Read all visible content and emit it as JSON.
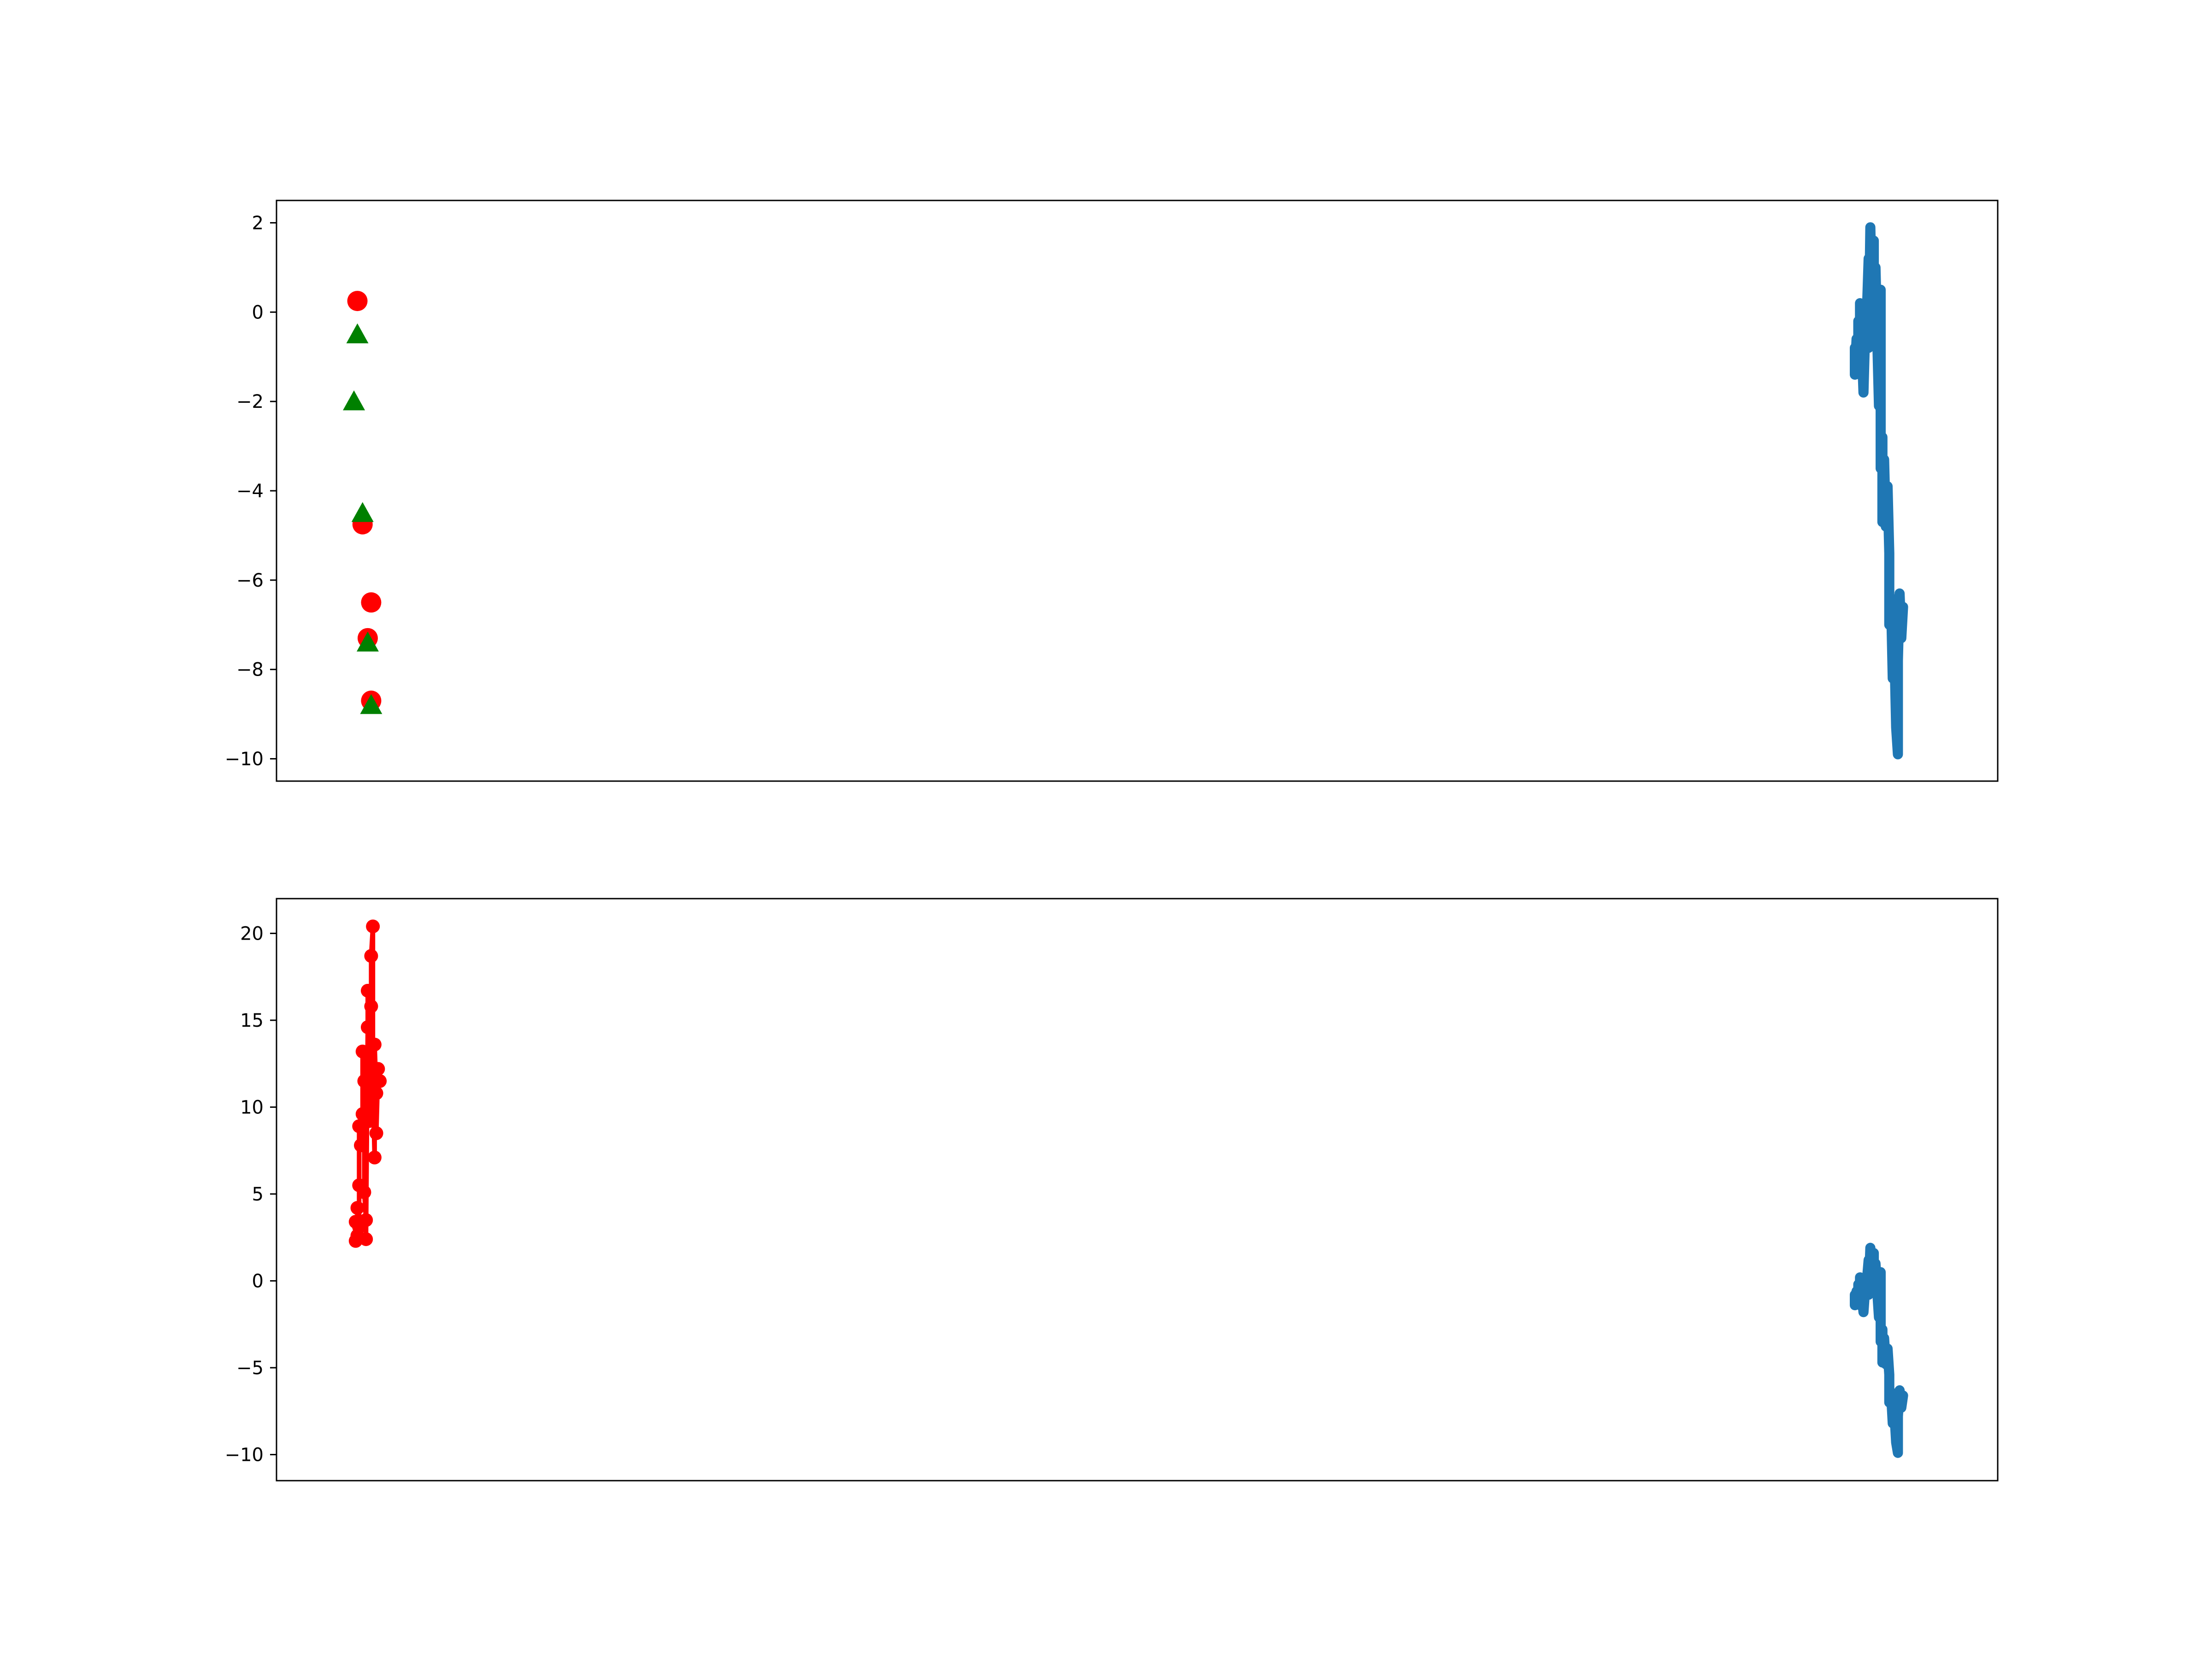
{
  "colors": {
    "blue_series": "#1f77b4",
    "red_series": "#ff0000",
    "green_markers": "#008000"
  },
  "chart_data": [
    {
      "type": "scatter",
      "title": "",
      "xlabel": "",
      "ylabel": "",
      "x_ticks_visible": false,
      "xlim": [
        0,
        100
      ],
      "ylim": [
        -10.5,
        2.5
      ],
      "yticks": [
        2,
        0,
        -2,
        -4,
        -6,
        -8,
        -10
      ],
      "ytick_labels": [
        "2",
        "0",
        "−2",
        "−4",
        "−6",
        "−8",
        "−10"
      ],
      "grid": false,
      "legend": false,
      "series": [
        {
          "kind": "line",
          "color": "#1f77b4",
          "points": [
            [
              91.7,
              -0.8
            ],
            [
              91.7,
              -1.4
            ],
            [
              91.8,
              -0.6
            ],
            [
              91.9,
              -1.1
            ],
            [
              91.9,
              -0.2
            ],
            [
              92.0,
              -1.4
            ],
            [
              92.0,
              0.2
            ],
            [
              92.1,
              -0.7
            ],
            [
              92.2,
              -1.8
            ],
            [
              92.3,
              -0.4
            ],
            [
              92.4,
              0.0
            ],
            [
              92.5,
              1.2
            ],
            [
              92.5,
              -0.8
            ],
            [
              92.6,
              1.9
            ],
            [
              92.7,
              0.1
            ],
            [
              92.8,
              1.6
            ],
            [
              92.8,
              -0.3
            ],
            [
              92.9,
              1.0
            ],
            [
              93.0,
              -0.6
            ],
            [
              93.1,
              -2.1
            ],
            [
              93.2,
              0.5
            ],
            [
              93.2,
              -3.5
            ],
            [
              93.3,
              -2.8
            ],
            [
              93.3,
              -4.7
            ],
            [
              93.4,
              -3.3
            ],
            [
              93.5,
              -4.8
            ],
            [
              93.6,
              -3.9
            ],
            [
              93.7,
              -5.4
            ],
            [
              93.7,
              -7.0
            ],
            [
              93.8,
              -6.4
            ],
            [
              93.9,
              -8.2
            ],
            [
              94.0,
              -7.6
            ],
            [
              94.1,
              -9.3
            ],
            [
              94.2,
              -9.9
            ],
            [
              94.2,
              -7.8
            ],
            [
              94.3,
              -6.3
            ],
            [
              94.4,
              -7.3
            ],
            [
              94.5,
              -6.6
            ]
          ]
        },
        {
          "kind": "markers",
          "marker": "circle",
          "color": "#ff0000",
          "points": [
            [
              4.7,
              0.25
            ],
            [
              5.0,
              -4.75
            ],
            [
              5.5,
              -6.5
            ],
            [
              5.3,
              -7.3
            ],
            [
              5.5,
              -8.7
            ]
          ]
        },
        {
          "kind": "markers",
          "marker": "triangle",
          "color": "#008000",
          "points": [
            [
              4.7,
              -0.5
            ],
            [
              4.5,
              -2.0
            ],
            [
              5.0,
              -4.5
            ],
            [
              5.3,
              -7.4
            ],
            [
              5.5,
              -8.8
            ]
          ]
        }
      ]
    },
    {
      "type": "line",
      "title": "",
      "xlabel": "",
      "ylabel": "",
      "x_ticks_visible": false,
      "xlim": [
        0,
        100
      ],
      "ylim": [
        -11.5,
        22
      ],
      "yticks": [
        20,
        15,
        10,
        5,
        0,
        -5,
        -10
      ],
      "ytick_labels": [
        "20",
        "15",
        "10",
        "5",
        "0",
        "−5",
        "−10"
      ],
      "grid": false,
      "legend": false,
      "series": [
        {
          "kind": "line_markers",
          "color": "#ff0000",
          "points": [
            [
              4.6,
              2.3
            ],
            [
              4.6,
              3.4
            ],
            [
              4.7,
              2.6
            ],
            [
              4.7,
              4.2
            ],
            [
              4.8,
              3.1
            ],
            [
              4.8,
              5.5
            ],
            [
              4.8,
              8.9
            ],
            [
              4.9,
              7.8
            ],
            [
              5.0,
              9.6
            ],
            [
              5.0,
              13.2
            ],
            [
              5.1,
              11.5
            ],
            [
              5.1,
              5.1
            ],
            [
              5.2,
              3.5
            ],
            [
              5.2,
              2.4
            ],
            [
              5.3,
              14.6
            ],
            [
              5.3,
              16.7
            ],
            [
              5.4,
              12.9
            ],
            [
              5.4,
              9.2
            ],
            [
              5.5,
              15.8
            ],
            [
              5.5,
              18.7
            ],
            [
              5.6,
              20.4
            ],
            [
              5.6,
              11.3
            ],
            [
              5.7,
              7.1
            ],
            [
              5.7,
              13.6
            ],
            [
              5.8,
              10.8
            ],
            [
              5.8,
              8.5
            ],
            [
              5.9,
              12.2
            ],
            [
              6.0,
              11.5
            ]
          ]
        },
        {
          "kind": "line",
          "color": "#1f77b4",
          "points": [
            [
              91.7,
              -0.8
            ],
            [
              91.7,
              -1.4
            ],
            [
              91.8,
              -0.6
            ],
            [
              91.9,
              -1.1
            ],
            [
              91.9,
              -0.2
            ],
            [
              92.0,
              -1.4
            ],
            [
              92.0,
              0.2
            ],
            [
              92.1,
              -0.7
            ],
            [
              92.2,
              -1.8
            ],
            [
              92.3,
              -0.4
            ],
            [
              92.4,
              0.0
            ],
            [
              92.5,
              1.2
            ],
            [
              92.5,
              -0.8
            ],
            [
              92.6,
              1.9
            ],
            [
              92.7,
              0.1
            ],
            [
              92.8,
              1.6
            ],
            [
              92.8,
              -0.3
            ],
            [
              92.9,
              1.0
            ],
            [
              93.0,
              -0.6
            ],
            [
              93.1,
              -2.1
            ],
            [
              93.2,
              0.5
            ],
            [
              93.2,
              -3.5
            ],
            [
              93.3,
              -2.8
            ],
            [
              93.3,
              -4.7
            ],
            [
              93.4,
              -3.3
            ],
            [
              93.5,
              -4.8
            ],
            [
              93.6,
              -3.9
            ],
            [
              93.7,
              -5.4
            ],
            [
              93.7,
              -7.0
            ],
            [
              93.8,
              -6.4
            ],
            [
              93.9,
              -8.2
            ],
            [
              94.0,
              -7.6
            ],
            [
              94.1,
              -9.3
            ],
            [
              94.2,
              -9.9
            ],
            [
              94.2,
              -7.8
            ],
            [
              94.3,
              -6.3
            ],
            [
              94.4,
              -7.3
            ],
            [
              94.5,
              -6.6
            ]
          ]
        }
      ]
    }
  ]
}
